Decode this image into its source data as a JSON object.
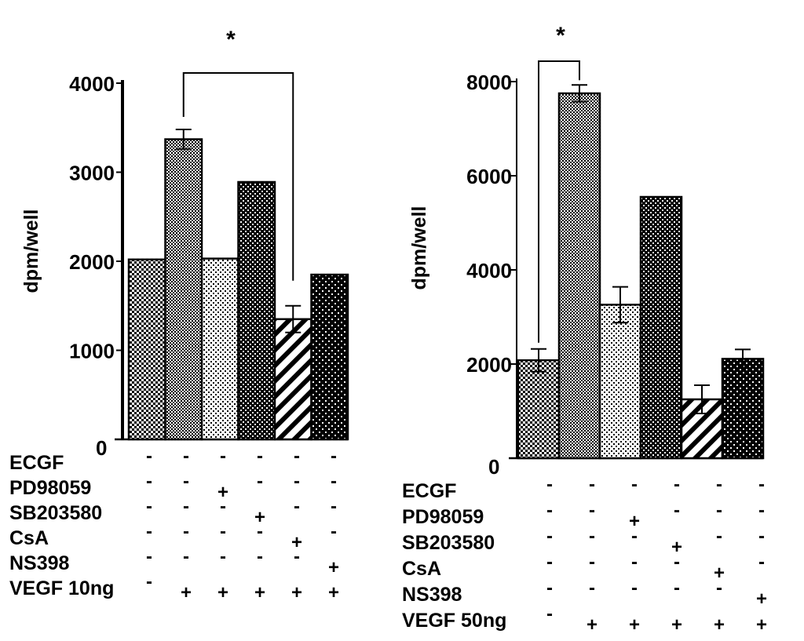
{
  "chart_data": [
    {
      "type": "bar",
      "title": "",
      "ylabel": "dpm/well",
      "xlabel": "",
      "ylim": [
        0,
        4000
      ],
      "yticks": [
        0,
        1000,
        2000,
        3000,
        4000
      ],
      "values": [
        2020,
        3370,
        2030,
        2890,
        1350,
        1850
      ],
      "errors": [
        0,
        110,
        0,
        0,
        150,
        0
      ],
      "patterns": [
        "checker-fine",
        "checker-dense",
        "dots-light",
        "checker-bold",
        "diagonal",
        "dots-dark"
      ],
      "significance": {
        "label": "*",
        "from": 1,
        "to": 4
      },
      "treatments": [
        {
          "label": "ECGF",
          "signs": [
            "-",
            "-",
            "-",
            "-",
            "-",
            "-"
          ]
        },
        {
          "label": "PD98059",
          "signs": [
            "-",
            "-",
            "+",
            "-",
            "-",
            "-"
          ]
        },
        {
          "label": "SB203580",
          "signs": [
            "-",
            "-",
            "-",
            "+",
            "-",
            "-"
          ]
        },
        {
          "label": "CsA",
          "signs": [
            "-",
            "-",
            "-",
            "-",
            "+",
            "-"
          ]
        },
        {
          "label": "NS398",
          "signs": [
            "-",
            "-",
            "-",
            "-",
            "-",
            "+"
          ]
        },
        {
          "label": "VEGF 10ng",
          "signs": [
            "-",
            "+",
            "+",
            "+",
            "+",
            "+"
          ]
        }
      ]
    },
    {
      "type": "bar",
      "title": "",
      "ylabel": "dpm/well",
      "xlabel": "",
      "ylim": [
        0,
        8000
      ],
      "yticks": [
        0,
        2000,
        4000,
        6000,
        8000
      ],
      "values": [
        2080,
        7750,
        3260,
        5550,
        1250,
        2110
      ],
      "errors": [
        240,
        180,
        380,
        0,
        300,
        200
      ],
      "patterns": [
        "checker-fine",
        "checker-dense",
        "dots-light",
        "checker-bold",
        "diagonal",
        "dots-dark"
      ],
      "significance": {
        "label": "*",
        "from": 0,
        "to": 1
      },
      "treatments": [
        {
          "label": "ECGF",
          "signs": [
            "-",
            "-",
            "-",
            "-",
            "-",
            "-"
          ]
        },
        {
          "label": "PD98059",
          "signs": [
            "-",
            "-",
            "+",
            "-",
            "-",
            "-"
          ]
        },
        {
          "label": "SB203580",
          "signs": [
            "-",
            "-",
            "-",
            "+",
            "-",
            "-"
          ]
        },
        {
          "label": "CsA",
          "signs": [
            "-",
            "-",
            "-",
            "-",
            "+",
            "-"
          ]
        },
        {
          "label": "NS398",
          "signs": [
            "-",
            "-",
            "-",
            "-",
            "-",
            "+"
          ]
        },
        {
          "label": "VEGF 50ng",
          "signs": [
            "-",
            "+",
            "+",
            "+",
            "+",
            "+"
          ]
        }
      ]
    }
  ]
}
